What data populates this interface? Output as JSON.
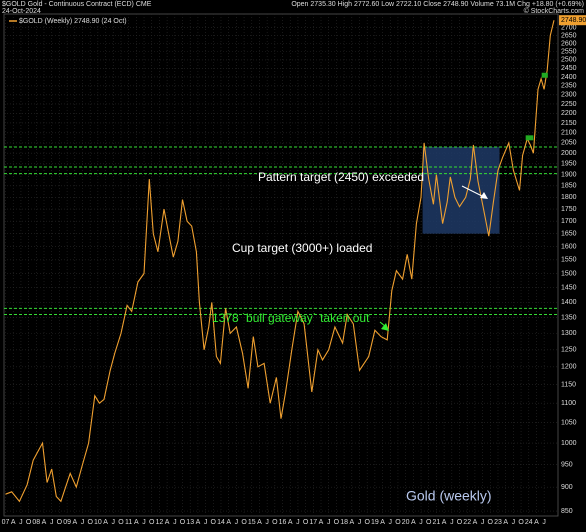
{
  "chart_data": {
    "type": "line",
    "header": {
      "symbol": "$GOLD Gold - Continuous Contract (ECD) CME",
      "date": "24-Oct-2024",
      "quote": "Open 2735.30  High 2772.60  Low 2722.10  Close 2748.90  Volume 73.1M  Chg +18.80 (+0.69%)",
      "source": "© StockCharts.com"
    },
    "title": "Gold (weekly)",
    "annotations": [
      "Pattern target (2450) exceeded",
      "Cup target (3000+) loaded",
      "1378 `bull gateway` taken out"
    ],
    "last_value_label": "2748.90",
    "log_scale": true,
    "grid": true,
    "xlim": [
      2006.95,
      2024.95
    ],
    "ylim": [
      840,
      2790
    ],
    "yticks": [
      850,
      900,
      950,
      1000,
      1050,
      1100,
      1150,
      1200,
      1250,
      1300,
      1350,
      1400,
      1450,
      1500,
      1550,
      1600,
      1650,
      1700,
      1750,
      1800,
      1850,
      1900,
      1950,
      2000,
      2050,
      2100,
      2150,
      2200,
      2250,
      2300,
      2350,
      2400,
      2450,
      2500,
      2550,
      2600,
      2650,
      2700
    ],
    "xticks": [
      {
        "value": 2007,
        "label": "07"
      },
      {
        "value": 2007.25,
        "label": "A"
      },
      {
        "value": 2007.5,
        "label": "J"
      },
      {
        "value": 2007.75,
        "label": "O"
      },
      {
        "value": 2008,
        "label": "08"
      },
      {
        "value": 2008.25,
        "label": "A"
      },
      {
        "value": 2008.5,
        "label": "J"
      },
      {
        "value": 2008.75,
        "label": "O"
      },
      {
        "value": 2009,
        "label": "09"
      },
      {
        "value": 2009.25,
        "label": "A"
      },
      {
        "value": 2009.5,
        "label": "J"
      },
      {
        "value": 2009.75,
        "label": "O"
      },
      {
        "value": 2010,
        "label": "10"
      },
      {
        "value": 2010.25,
        "label": "A"
      },
      {
        "value": 2010.5,
        "label": "J"
      },
      {
        "value": 2010.75,
        "label": "O"
      },
      {
        "value": 2011,
        "label": "11"
      },
      {
        "value": 2011.25,
        "label": "A"
      },
      {
        "value": 2011.5,
        "label": "J"
      },
      {
        "value": 2011.75,
        "label": "O"
      },
      {
        "value": 2012,
        "label": "12"
      },
      {
        "value": 2012.25,
        "label": "A"
      },
      {
        "value": 2012.5,
        "label": "J"
      },
      {
        "value": 2012.75,
        "label": "O"
      },
      {
        "value": 2013,
        "label": "13"
      },
      {
        "value": 2013.25,
        "label": "A"
      },
      {
        "value": 2013.5,
        "label": "J"
      },
      {
        "value": 2013.75,
        "label": "O"
      },
      {
        "value": 2014,
        "label": "14"
      },
      {
        "value": 2014.25,
        "label": "A"
      },
      {
        "value": 2014.5,
        "label": "J"
      },
      {
        "value": 2014.75,
        "label": "O"
      },
      {
        "value": 2015,
        "label": "15"
      },
      {
        "value": 2015.25,
        "label": "A"
      },
      {
        "value": 2015.5,
        "label": "J"
      },
      {
        "value": 2015.75,
        "label": "O"
      },
      {
        "value": 2016,
        "label": "16"
      },
      {
        "value": 2016.25,
        "label": "A"
      },
      {
        "value": 2016.5,
        "label": "J"
      },
      {
        "value": 2016.75,
        "label": "O"
      },
      {
        "value": 2017,
        "label": "17"
      },
      {
        "value": 2017.25,
        "label": "A"
      },
      {
        "value": 2017.5,
        "label": "J"
      },
      {
        "value": 2017.75,
        "label": "O"
      },
      {
        "value": 2018,
        "label": "18"
      },
      {
        "value": 2018.25,
        "label": "A"
      },
      {
        "value": 2018.5,
        "label": "J"
      },
      {
        "value": 2018.75,
        "label": "O"
      },
      {
        "value": 2019,
        "label": "19"
      },
      {
        "value": 2019.25,
        "label": "A"
      },
      {
        "value": 2019.5,
        "label": "J"
      },
      {
        "value": 2019.75,
        "label": "O"
      },
      {
        "value": 2020,
        "label": "20"
      },
      {
        "value": 2020.25,
        "label": "A"
      },
      {
        "value": 2020.5,
        "label": "J"
      },
      {
        "value": 2020.75,
        "label": "O"
      },
      {
        "value": 2021,
        "label": "21"
      },
      {
        "value": 2021.25,
        "label": "A"
      },
      {
        "value": 2021.5,
        "label": "J"
      },
      {
        "value": 2021.75,
        "label": "O"
      },
      {
        "value": 2022,
        "label": "22"
      },
      {
        "value": 2022.25,
        "label": "A"
      },
      {
        "value": 2022.5,
        "label": "J"
      },
      {
        "value": 2022.75,
        "label": "O"
      },
      {
        "value": 2023,
        "label": "23"
      },
      {
        "value": 2023.25,
        "label": "A"
      },
      {
        "value": 2023.5,
        "label": "J"
      },
      {
        "value": 2023.75,
        "label": "O"
      },
      {
        "value": 2024,
        "label": "24"
      },
      {
        "value": 2024.25,
        "label": "A"
      },
      {
        "value": 2024.5,
        "label": "J"
      }
    ],
    "series": [
      {
        "name": "$GOLD (Weekly) 2748.90 (24 Oct)",
        "color": "#f0a030",
        "x": [
          2007.0,
          2007.2,
          2007.45,
          2007.7,
          2007.9,
          2008.05,
          2008.2,
          2008.35,
          2008.5,
          2008.65,
          2008.8,
          2008.95,
          2009.1,
          2009.3,
          2009.5,
          2009.7,
          2009.9,
          2010.05,
          2010.2,
          2010.4,
          2010.55,
          2010.75,
          2010.95,
          2011.1,
          2011.3,
          2011.5,
          2011.67,
          2011.8,
          2011.95,
          2012.15,
          2012.3,
          2012.45,
          2012.6,
          2012.75,
          2012.9,
          2013.05,
          2013.2,
          2013.3,
          2013.45,
          2013.6,
          2013.7,
          2013.85,
          2013.98,
          2014.15,
          2014.3,
          2014.5,
          2014.7,
          2014.88,
          2015.05,
          2015.2,
          2015.4,
          2015.6,
          2015.8,
          2015.95,
          2016.1,
          2016.3,
          2016.5,
          2016.7,
          2016.95,
          2017.15,
          2017.3,
          2017.5,
          2017.7,
          2017.95,
          2018.1,
          2018.3,
          2018.5,
          2018.65,
          2018.8,
          2019.0,
          2019.2,
          2019.4,
          2019.55,
          2019.7,
          2019.9,
          2020.05,
          2020.2,
          2020.35,
          2020.5,
          2020.6,
          2020.75,
          2020.9,
          2021.0,
          2021.2,
          2021.35,
          2021.45,
          2021.6,
          2021.75,
          2021.95,
          2022.1,
          2022.2,
          2022.35,
          2022.5,
          2022.7,
          2022.85,
          2023.0,
          2023.15,
          2023.35,
          2023.5,
          2023.7,
          2023.8,
          2023.95,
          2024.05,
          2024.15,
          2024.3,
          2024.4,
          2024.5,
          2024.6,
          2024.7,
          2024.82
        ],
        "values": [
          885,
          890,
          870,
          905,
          960,
          980,
          1000,
          910,
          940,
          880,
          870,
          900,
          930,
          900,
          950,
          1000,
          1120,
          1100,
          1110,
          1190,
          1240,
          1300,
          1390,
          1370,
          1470,
          1500,
          1880,
          1650,
          1580,
          1750,
          1650,
          1560,
          1620,
          1790,
          1700,
          1680,
          1580,
          1400,
          1250,
          1320,
          1400,
          1230,
          1210,
          1380,
          1300,
          1320,
          1240,
          1140,
          1290,
          1200,
          1210,
          1100,
          1170,
          1060,
          1130,
          1250,
          1370,
          1330,
          1130,
          1250,
          1220,
          1250,
          1320,
          1270,
          1360,
          1330,
          1190,
          1210,
          1230,
          1310,
          1290,
          1280,
          1440,
          1510,
          1480,
          1570,
          1480,
          1690,
          1800,
          2050,
          1880,
          1770,
          1900,
          1690,
          1780,
          1890,
          1800,
          1760,
          1800,
          1880,
          2040,
          1870,
          1770,
          1640,
          1780,
          1920,
          1980,
          2050,
          1920,
          1830,
          1990,
          2070,
          2040,
          2000,
          2330,
          2390,
          2330,
          2440,
          2650,
          2749
        ]
      }
    ],
    "hlines": [
      {
        "value": 2030,
        "color": "#33dd33"
      },
      {
        "value": 1935,
        "color": "#33dd33"
      },
      {
        "value": 1905,
        "color": "#33dd33"
      },
      {
        "value": 1380,
        "color": "#33dd33"
      },
      {
        "value": 1360,
        "color": "#33dd33"
      }
    ],
    "zone": {
      "x": [
        2020.55,
        2023.05
      ],
      "y": [
        1650,
        2030
      ],
      "color": "#1e3a66"
    },
    "levels": [
      {
        "x": [
          2023.9,
          2024.15
        ],
        "value": 2075,
        "color": "#22aa22"
      },
      {
        "x": [
          2024.42,
          2024.62
        ],
        "value": 2410,
        "color": "#22aa22"
      }
    ]
  }
}
